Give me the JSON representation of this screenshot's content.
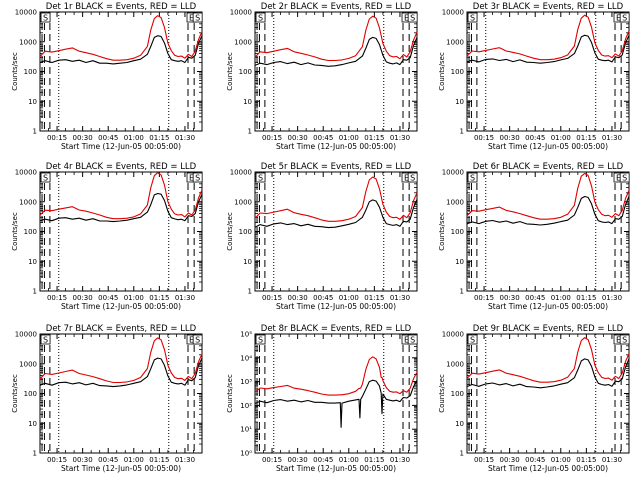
{
  "figure": {
    "background": "#ffffff",
    "events_color": "#000000",
    "lld_color": "#e00000",
    "ylabel": "Counts/sec",
    "xlabel": "Start Time (12-Jun-05 00:05:00)",
    "x_ticks": [
      "00:15",
      "00:30",
      "00:45",
      "01:00",
      "01:15",
      "01:30"
    ],
    "x_tick_minutes": [
      15,
      30,
      45,
      60,
      75,
      90
    ],
    "x_range_minutes": [
      5,
      100
    ],
    "y_scale": "log",
    "y_tick_labels_plain": [
      "1",
      "10",
      "100",
      "1000",
      "10000"
    ],
    "y_tick_labels_exp": [
      "10⁰",
      "10¹",
      "10²",
      "10³",
      "10⁴",
      "10⁵"
    ],
    "marker_label_s": "S",
    "marker_label_e": "E",
    "dashed_lines_minutes": [
      6.2,
      7.6,
      10.8,
      91.8,
      95.4
    ],
    "dotted_lines_minutes": [
      16.0,
      80.5
    ]
  },
  "chart_data": [
    {
      "type": "line",
      "title": "Det 1r BLACK = Events, RED = LLD",
      "y_tick_style": "plain",
      "ylim": [
        1,
        10000
      ],
      "x": [
        5,
        8,
        12,
        16,
        20,
        24,
        28,
        32,
        36,
        40,
        44,
        48,
        52,
        56,
        60,
        64,
        68,
        70,
        72,
        74,
        76,
        78,
        80,
        82,
        84,
        86,
        88,
        90,
        92,
        94,
        96,
        98,
        100
      ],
      "series": [
        {
          "name": "Events",
          "values": [
            200,
            230,
            200,
            240,
            250,
            220,
            240,
            200,
            230,
            190,
            190,
            180,
            190,
            200,
            230,
            260,
            380,
            700,
            1400,
            1600,
            1500,
            900,
            400,
            250,
            230,
            220,
            230,
            200,
            300,
            280,
            350,
            900,
            1600
          ]
        },
        {
          "name": "LLD",
          "values": [
            320,
            480,
            450,
            500,
            560,
            620,
            480,
            430,
            380,
            320,
            270,
            240,
            240,
            250,
            280,
            350,
            700,
            2500,
            6000,
            7500,
            6500,
            3000,
            900,
            500,
            350,
            320,
            330,
            280,
            380,
            320,
            480,
            1200,
            2200
          ]
        }
      ]
    },
    {
      "type": "line",
      "title": "Det 2r BLACK = Events, RED = LLD",
      "y_tick_style": "plain",
      "ylim": [
        1,
        10000
      ],
      "x": [
        5,
        8,
        12,
        16,
        20,
        24,
        28,
        32,
        36,
        40,
        44,
        48,
        52,
        56,
        60,
        64,
        68,
        70,
        72,
        74,
        76,
        78,
        80,
        82,
        84,
        86,
        88,
        90,
        92,
        94,
        96,
        98,
        100
      ],
      "series": [
        {
          "name": "Events",
          "values": [
            160,
            190,
            170,
            200,
            215,
            185,
            205,
            170,
            195,
            165,
            160,
            150,
            155,
            170,
            195,
            220,
            330,
            600,
            1200,
            1400,
            1300,
            800,
            350,
            210,
            190,
            180,
            195,
            170,
            250,
            240,
            290,
            760,
            1400
          ]
        },
        {
          "name": "LLD",
          "values": [
            300,
            460,
            430,
            480,
            540,
            600,
            460,
            410,
            360,
            310,
            260,
            235,
            235,
            245,
            275,
            340,
            680,
            2400,
            5800,
            7200,
            6200,
            2900,
            880,
            480,
            340,
            310,
            320,
            270,
            370,
            310,
            460,
            1150,
            2100
          ]
        }
      ]
    },
    {
      "type": "line",
      "title": "Det 3r BLACK = Events, RED = LLD",
      "y_tick_style": "plain",
      "ylim": [
        1,
        10000
      ],
      "x": [
        5,
        8,
        12,
        16,
        20,
        24,
        28,
        32,
        36,
        40,
        44,
        48,
        52,
        56,
        60,
        64,
        68,
        70,
        72,
        74,
        76,
        78,
        80,
        82,
        84,
        86,
        88,
        90,
        92,
        94,
        96,
        98,
        100
      ],
      "series": [
        {
          "name": "Events",
          "values": [
            210,
            240,
            210,
            255,
            265,
            235,
            255,
            215,
            245,
            205,
            200,
            190,
            200,
            215,
            245,
            275,
            400,
            720,
            1450,
            1650,
            1550,
            950,
            420,
            260,
            240,
            230,
            240,
            210,
            310,
            290,
            360,
            920,
            1650
          ]
        },
        {
          "name": "LLD",
          "values": [
            330,
            490,
            460,
            510,
            570,
            630,
            490,
            440,
            390,
            330,
            280,
            250,
            250,
            260,
            290,
            360,
            720,
            2600,
            6200,
            7800,
            6700,
            3100,
            920,
            510,
            360,
            330,
            340,
            290,
            390,
            330,
            490,
            1250,
            2300
          ]
        }
      ]
    },
    {
      "type": "line",
      "title": "Det 4r BLACK = Events, RED = LLD",
      "y_tick_style": "plain",
      "ylim": [
        1,
        10000
      ],
      "x": [
        5,
        8,
        12,
        16,
        20,
        24,
        28,
        32,
        36,
        40,
        44,
        48,
        52,
        56,
        60,
        64,
        68,
        70,
        72,
        74,
        76,
        78,
        80,
        82,
        84,
        86,
        88,
        90,
        92,
        94,
        96,
        98,
        100
      ],
      "series": [
        {
          "name": "Events",
          "values": [
            230,
            260,
            230,
            280,
            290,
            260,
            280,
            240,
            270,
            225,
            225,
            215,
            225,
            240,
            270,
            300,
            450,
            800,
            1700,
            1900,
            1800,
            1100,
            480,
            290,
            265,
            250,
            260,
            230,
            340,
            320,
            400,
            1000,
            1800
          ]
        },
        {
          "name": "LLD",
          "values": [
            360,
            520,
            500,
            560,
            620,
            680,
            530,
            480,
            420,
            360,
            300,
            270,
            270,
            280,
            310,
            390,
            780,
            3000,
            7500,
            9500,
            8000,
            3600,
            1000,
            560,
            390,
            360,
            370,
            310,
            420,
            360,
            530,
            1350,
            2500
          ]
        }
      ]
    },
    {
      "type": "line",
      "title": "Det 5r BLACK = Events, RED = LLD",
      "y_tick_style": "plain",
      "ylim": [
        1,
        10000
      ],
      "x": [
        5,
        8,
        12,
        16,
        20,
        24,
        28,
        32,
        36,
        40,
        44,
        48,
        52,
        56,
        60,
        64,
        68,
        70,
        72,
        74,
        76,
        78,
        80,
        82,
        84,
        86,
        88,
        90,
        92,
        94,
        96,
        98,
        100
      ],
      "series": [
        {
          "name": "Events",
          "values": [
            140,
            170,
            150,
            180,
            195,
            170,
            185,
            155,
            175,
            150,
            145,
            135,
            140,
            155,
            175,
            200,
            300,
            520,
            1000,
            1150,
            1050,
            650,
            300,
            185,
            170,
            160,
            170,
            150,
            220,
            210,
            260,
            650,
            1200
          ]
        },
        {
          "name": "LLD",
          "values": [
            280,
            420,
            400,
            450,
            500,
            560,
            430,
            380,
            340,
            290,
            245,
            220,
            220,
            230,
            260,
            320,
            640,
            2200,
            5400,
            6800,
            5800,
            2700,
            820,
            450,
            320,
            290,
            300,
            255,
            350,
            290,
            430,
            1100,
            2000
          ]
        }
      ]
    },
    {
      "type": "line",
      "title": "Det 6r BLACK = Events, RED = LLD",
      "y_tick_style": "plain",
      "ylim": [
        1,
        10000
      ],
      "x": [
        5,
        8,
        12,
        16,
        20,
        24,
        28,
        32,
        36,
        40,
        44,
        48,
        52,
        56,
        60,
        64,
        68,
        70,
        72,
        74,
        76,
        78,
        80,
        82,
        84,
        86,
        88,
        90,
        92,
        94,
        96,
        98,
        100
      ],
      "series": [
        {
          "name": "Events",
          "values": [
            180,
            210,
            185,
            220,
            235,
            205,
            225,
            190,
            215,
            180,
            175,
            165,
            175,
            190,
            215,
            240,
            360,
            650,
            1300,
            1500,
            1400,
            850,
            380,
            230,
            210,
            200,
            210,
            185,
            270,
            260,
            320,
            820,
            1500
          ]
        },
        {
          "name": "LLD",
          "values": [
            340,
            500,
            480,
            540,
            600,
            660,
            510,
            460,
            400,
            340,
            290,
            260,
            260,
            270,
            300,
            380,
            760,
            2900,
            7200,
            9000,
            7600,
            3400,
            980,
            540,
            380,
            340,
            350,
            300,
            400,
            340,
            510,
            1300,
            2400
          ]
        }
      ]
    },
    {
      "type": "line",
      "title": "Det 7r BLACK = Events, RED = LLD",
      "y_tick_style": "plain",
      "ylim": [
        1,
        10000
      ],
      "x": [
        5,
        8,
        12,
        16,
        20,
        24,
        28,
        32,
        36,
        40,
        44,
        48,
        52,
        56,
        60,
        64,
        68,
        70,
        72,
        74,
        76,
        78,
        80,
        82,
        84,
        86,
        88,
        90,
        92,
        94,
        96,
        98,
        100
      ],
      "series": [
        {
          "name": "Events",
          "values": [
            190,
            220,
            190,
            230,
            240,
            210,
            230,
            195,
            220,
            185,
            180,
            170,
            180,
            195,
            220,
            250,
            370,
            680,
            1350,
            1550,
            1450,
            880,
            390,
            240,
            220,
            210,
            220,
            190,
            290,
            270,
            340,
            870,
            1550
          ]
        },
        {
          "name": "LLD",
          "values": [
            310,
            470,
            440,
            490,
            550,
            610,
            470,
            420,
            370,
            315,
            265,
            235,
            235,
            245,
            275,
            345,
            690,
            2450,
            5900,
            7400,
            6400,
            2950,
            890,
            490,
            345,
            315,
            325,
            275,
            375,
            315,
            470,
            1180,
            2150
          ]
        }
      ]
    },
    {
      "type": "line",
      "title": "Det 8r BLACK = Events, RED = LLD",
      "y_tick_style": "exp",
      "ylim": [
        1,
        100000
      ],
      "x": [
        5,
        8,
        12,
        16,
        20,
        24,
        28,
        32,
        36,
        40,
        44,
        48,
        52,
        55,
        55.5,
        56,
        60,
        64,
        66,
        66.5,
        67,
        68,
        70,
        72,
        74,
        76,
        78,
        79,
        79.5,
        80,
        82,
        84,
        86,
        88,
        90,
        92,
        94,
        96,
        98,
        100
      ],
      "series": [
        {
          "name": "Events",
          "values": [
            120,
            150,
            130,
            160,
            175,
            150,
            165,
            140,
            160,
            135,
            135,
            125,
            125,
            130,
            12,
            125,
            150,
            170,
            180,
            30,
            180,
            240,
            480,
            1000,
            1150,
            1050,
            650,
            330,
            45,
            300,
            180,
            165,
            155,
            165,
            145,
            215,
            205,
            255,
            620,
            1150
          ]
        },
        {
          "name": "LLD",
          "values": [
            360,
            540,
            500,
            560,
            620,
            690,
            530,
            480,
            420,
            360,
            300,
            270,
            270,
            280,
            280,
            280,
            310,
            390,
            520,
            520,
            540,
            780,
            3200,
            8500,
            11000,
            9000,
            3900,
            1500,
            1500,
            1100,
            560,
            390,
            360,
            370,
            310,
            420,
            360,
            530,
            1350,
            2500
          ]
        }
      ]
    },
    {
      "type": "line",
      "title": "Det 9r BLACK = Events, RED = LLD",
      "y_tick_style": "plain",
      "ylim": [
        1,
        10000
      ],
      "x": [
        5,
        8,
        12,
        16,
        20,
        24,
        28,
        32,
        36,
        40,
        44,
        48,
        52,
        56,
        60,
        64,
        68,
        70,
        72,
        74,
        76,
        78,
        80,
        82,
        84,
        86,
        88,
        90,
        92,
        94,
        96,
        98,
        100
      ],
      "series": [
        {
          "name": "Events",
          "values": [
            170,
            200,
            175,
            210,
            225,
            195,
            215,
            180,
            205,
            170,
            165,
            155,
            165,
            180,
            205,
            230,
            340,
            620,
            1250,
            1450,
            1350,
            820,
            360,
            220,
            200,
            190,
            200,
            175,
            260,
            250,
            310,
            790,
            1450
          ]
        },
        {
          "name": "LLD",
          "values": [
            320,
            480,
            450,
            500,
            560,
            620,
            480,
            430,
            380,
            320,
            270,
            240,
            240,
            250,
            280,
            350,
            700,
            2500,
            6000,
            7500,
            6500,
            3000,
            900,
            500,
            350,
            320,
            330,
            280,
            380,
            320,
            480,
            1200,
            2200
          ]
        }
      ]
    }
  ]
}
